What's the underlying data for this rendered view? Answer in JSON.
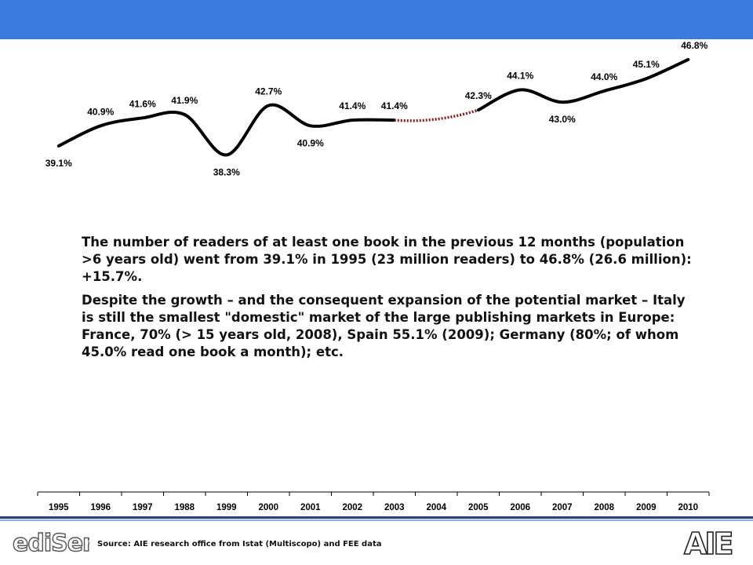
{
  "chart_data": {
    "type": "line",
    "title": "",
    "xlabel": "",
    "ylabel": "",
    "categories": [
      "1995",
      "1996",
      "1997",
      "1988",
      "1999",
      "2000",
      "2001",
      "2002",
      "2003",
      "2004",
      "2005",
      "2006",
      "2007",
      "2008",
      "2009",
      "2010"
    ],
    "series": [
      {
        "values": [
          39.1,
          40.9,
          41.6,
          41.9,
          38.3,
          42.7,
          40.9,
          41.4,
          41.4,
          null,
          42.3,
          44.1,
          43.0,
          44.0,
          45.1,
          46.8
        ],
        "labels": [
          "39.1%",
          "40.9%",
          "41.6%",
          "41.9%",
          "38.3%",
          "42.7%",
          "40.9%",
          "41.4%",
          "41.4%",
          "",
          "42.3%",
          "44.1%",
          "43.0%",
          "44.0%",
          "45.1%",
          "46.8%"
        ],
        "gap_segment": {
          "from": "2003",
          "to": "2005",
          "style": "dotted",
          "color": "#8b1a1a"
        }
      }
    ],
    "colors": {
      "line": "#000000",
      "gap": "#8b1a1a",
      "header": "#3a7be0"
    }
  },
  "body": {
    "paragraph1": "The number of readers of at least one book in the previous 12 months (population >6 years old) went from 39.1% in 1995 (23 million readers) to 46.8% (26.6 million): +15.7%.",
    "paragraph2": "Despite the growth – and the consequent expansion of the potential market – Italy is still the smallest \"domestic\" market of the large publishing markets in Europe: France, 70% (> 15 years old, 2008), Spain 55.1% (2009); Germany (80%; of whom 45.0% read one book a month); etc."
  },
  "footer": {
    "source": "Source: AIE research office from Istat (Multiscopo) and FEE data",
    "logo_left": "ediSer",
    "logo_right": "AIE"
  }
}
